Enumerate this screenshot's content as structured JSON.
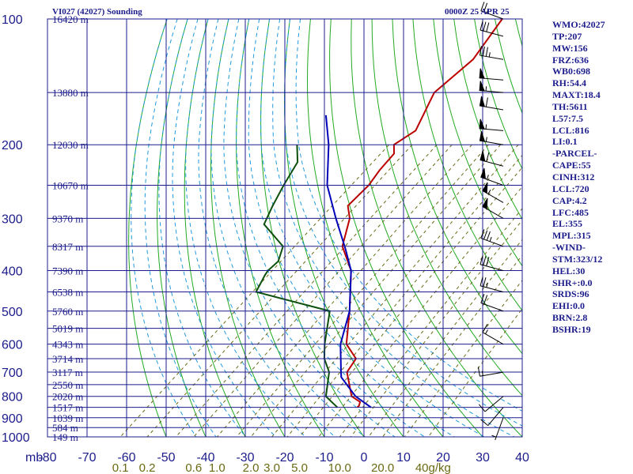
{
  "header": {
    "station": "VI027 (42027) Sounding",
    "time": "0000Z 25 APR 25"
  },
  "stats": [
    "WMO:42027",
    "TP:207",
    "MW:156",
    "FRZ:636",
    "WB0:698",
    "RH:54.4",
    "MAXT:18.4",
    "TH:5611",
    "L57:7.5",
    "LCL:816",
    "LI:0.1",
    "-PARCEL-",
    "CAPE:55",
    "CINH:312",
    "LCL:720",
    "CAP:4.2",
    "LFC:485",
    "EL:355",
    "MPL:315",
    "-WIND-",
    "STM:323/12",
    "HEL:30",
    "SHR+:0.0",
    "SRDS:96",
    "EHI:0.0",
    "BRN:2.8",
    "BSHR:19"
  ],
  "colors": {
    "isobar": "#1c1c8c",
    "dry_adiabat": "#22aa22",
    "mixing_ratio": "#6a6a14",
    "moist_adiabat": "#2299dd",
    "temperature": "#bb0000",
    "dewpoint": "#0d500d",
    "parcel": "#0000bb",
    "wind": "#000000"
  },
  "chart_data": {
    "type": "line",
    "title": "VI027 (42027) Sounding",
    "xlabel": "",
    "ylabel": "mb",
    "x_ticks": [
      "-80",
      "-70",
      "-60",
      "-50",
      "-40",
      "-30",
      "-20",
      "-10",
      "0",
      "10",
      "20",
      "30",
      "40"
    ],
    "pressure_ticks": [
      "100",
      "200",
      "300",
      "400",
      "500",
      "600",
      "700",
      "800",
      "900",
      "1000"
    ],
    "height_labels": [
      {
        "p": 100,
        "label": "16420 m"
      },
      {
        "p": 150,
        "label": "13880 m"
      },
      {
        "p": 200,
        "label": "12030 m"
      },
      {
        "p": 250,
        "label": "10670 m"
      },
      {
        "p": 300,
        "label": "9370 m"
      },
      {
        "p": 350,
        "label": "8317 m"
      },
      {
        "p": 400,
        "label": "7390 m"
      },
      {
        "p": 450,
        "label": "6538 m"
      },
      {
        "p": 500,
        "label": "5760 m"
      },
      {
        "p": 550,
        "label": "5019 m"
      },
      {
        "p": 600,
        "label": "4343 m"
      },
      {
        "p": 650,
        "label": "3714 m"
      },
      {
        "p": 700,
        "label": "3117 m"
      },
      {
        "p": 750,
        "label": "2550 m"
      },
      {
        "p": 800,
        "label": "2020 m"
      },
      {
        "p": 850,
        "label": "1517 m"
      },
      {
        "p": 900,
        "label": "1039 m"
      },
      {
        "p": 950,
        "label": "584 m"
      },
      {
        "p": 1000,
        "label": "149 m"
      }
    ],
    "mixing_ratio_labels": [
      "0.1",
      "0.2",
      "0.6",
      "1.0",
      "2.0",
      "3.0",
      "5.0",
      "10.0",
      "20.0",
      "40g/kg"
    ],
    "xlim": [
      -80,
      40
    ],
    "ylim": [
      1000,
      100
    ],
    "series": [
      {
        "key": "temperature",
        "values": [
          {
            "p": 850,
            "t": 10.0
          },
          {
            "p": 843,
            "t": 10.0
          },
          {
            "p": 825,
            "t": 9.2
          },
          {
            "p": 800,
            "t": 5.5
          },
          {
            "p": 700,
            "t": -2.5
          },
          {
            "p": 650,
            "t": -4.0
          },
          {
            "p": 600,
            "t": -10.5
          },
          {
            "p": 500,
            "t": -19.0
          },
          {
            "p": 400,
            "t": -30.0
          },
          {
            "p": 350,
            "t": -39.0
          },
          {
            "p": 300,
            "t": -45.0
          },
          {
            "p": 280,
            "t": -49.0
          },
          {
            "p": 250,
            "t": -49.5
          },
          {
            "p": 230,
            "t": -51.0
          },
          {
            "p": 210,
            "t": -52.0
          },
          {
            "p": 200,
            "t": -54.5
          },
          {
            "p": 185,
            "t": -53.0
          },
          {
            "p": 150,
            "t": -59.0
          },
          {
            "p": 125,
            "t": -58.5
          },
          {
            "p": 100,
            "t": -62.5
          }
        ]
      },
      {
        "key": "dewpoint",
        "values": [
          {
            "p": 850,
            "t": 5.0
          },
          {
            "p": 800,
            "t": -1.0
          },
          {
            "p": 700,
            "t": -7.0
          },
          {
            "p": 650,
            "t": -12.0
          },
          {
            "p": 600,
            "t": -16.0
          },
          {
            "p": 500,
            "t": -24.0
          },
          {
            "p": 450,
            "t": -48.0
          },
          {
            "p": 410,
            "t": -50.5
          },
          {
            "p": 400,
            "t": -51.0
          },
          {
            "p": 380,
            "t": -51.0
          },
          {
            "p": 350,
            "t": -54.0
          },
          {
            "p": 310,
            "t": -65.0
          },
          {
            "p": 280,
            "t": -68.0
          },
          {
            "p": 250,
            "t": -71.0
          },
          {
            "p": 220,
            "t": -74.0
          },
          {
            "p": 200,
            "t": -79.0
          }
        ]
      },
      {
        "key": "parcel",
        "values": [
          {
            "p": 850,
            "t": 13.5
          },
          {
            "p": 800,
            "t": 6.5
          },
          {
            "p": 720,
            "t": -2.5
          },
          {
            "p": 700,
            "t": -4.0
          },
          {
            "p": 600,
            "t": -12.0
          },
          {
            "p": 500,
            "t": -19.0
          },
          {
            "p": 400,
            "t": -30.0
          },
          {
            "p": 355,
            "t": -37.5
          },
          {
            "p": 300,
            "t": -48.5
          },
          {
            "p": 250,
            "t": -60.0
          },
          {
            "p": 200,
            "t": -71.0
          },
          {
            "p": 170,
            "t": -80.0
          }
        ]
      }
    ],
    "wind_barbs": [
      {
        "p": 100,
        "dir": 290,
        "spd": 25
      },
      {
        "p": 110,
        "dir": 285,
        "spd": 30
      },
      {
        "p": 125,
        "dir": 280,
        "spd": 35
      },
      {
        "p": 140,
        "dir": 275,
        "spd": 50
      },
      {
        "p": 150,
        "dir": 275,
        "spd": 55
      },
      {
        "p": 165,
        "dir": 280,
        "spd": 60
      },
      {
        "p": 185,
        "dir": 275,
        "spd": 55
      },
      {
        "p": 200,
        "dir": 280,
        "spd": 55
      },
      {
        "p": 225,
        "dir": 285,
        "spd": 60
      },
      {
        "p": 250,
        "dir": 290,
        "spd": 55
      },
      {
        "p": 275,
        "dir": 300,
        "spd": 55
      },
      {
        "p": 300,
        "dir": 300,
        "spd": 50
      },
      {
        "p": 350,
        "dir": 290,
        "spd": 35
      },
      {
        "p": 400,
        "dir": 285,
        "spd": 30
      },
      {
        "p": 450,
        "dir": 285,
        "spd": 25
      },
      {
        "p": 500,
        "dir": 290,
        "spd": 20
      },
      {
        "p": 600,
        "dir": 300,
        "spd": 15
      },
      {
        "p": 700,
        "dir": 260,
        "spd": 15
      },
      {
        "p": 800,
        "dir": 230,
        "spd": 10
      },
      {
        "p": 850,
        "dir": 220,
        "spd": 10
      },
      {
        "p": 900,
        "dir": 200,
        "spd": 5
      }
    ]
  }
}
